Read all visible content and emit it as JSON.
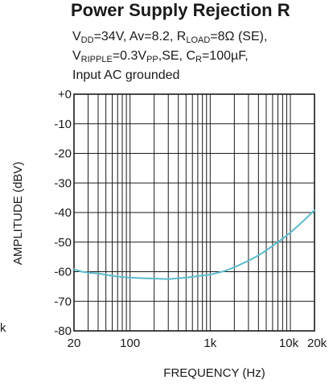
{
  "chart_data": {
    "type": "line",
    "title": "Power Supply Rejection R",
    "conditions": {
      "line1": {
        "a": "V",
        "a_sub": "DD",
        "b": "=34V, Av=8.2, R",
        "b_sub": "LOAD",
        "c": "=8Ω (SE),"
      },
      "line2": {
        "a": "V",
        "a_sub": "RIPPLE",
        "b": "=0.3V",
        "b_sub": "PP",
        "c": ",SE, C",
        "c_sub": "R",
        "d": "=100µF,"
      },
      "line3": "Input AC grounded"
    },
    "xlabel": "FREQUENCY (Hz)",
    "ylabel": "AMPLITUDE (dBV)",
    "xscale": "log",
    "xlim": [
      20,
      20000
    ],
    "ylim": [
      -80,
      0
    ],
    "grid": true,
    "x_ticks": [
      {
        "value": 20,
        "label": "20"
      },
      {
        "value": 100,
        "label": "100"
      },
      {
        "value": 1000,
        "label": "1k"
      },
      {
        "value": 10000,
        "label": "10k"
      },
      {
        "value": 20000,
        "label": "20k"
      }
    ],
    "y_ticks": [
      {
        "value": 0,
        "label": "+0"
      },
      {
        "value": -10,
        "label": "-10"
      },
      {
        "value": -20,
        "label": "-20"
      },
      {
        "value": -30,
        "label": "-30"
      },
      {
        "value": -40,
        "label": "-40"
      },
      {
        "value": -50,
        "label": "-50"
      },
      {
        "value": -60,
        "label": "-60"
      },
      {
        "value": -70,
        "label": "-70"
      },
      {
        "value": -80,
        "label": "-80"
      }
    ],
    "series": [
      {
        "color": "#5bbccc",
        "x": [
          20,
          25,
          30,
          40,
          50,
          60,
          80,
          100,
          150,
          200,
          300,
          400,
          500,
          700,
          1000,
          1500,
          2000,
          3000,
          4000,
          5000,
          7000,
          10000,
          15000,
          20000
        ],
        "y": [
          -59.2,
          -60.0,
          -60.3,
          -60.6,
          -61.0,
          -61.4,
          -61.8,
          -62.0,
          -62.2,
          -62.3,
          -62.5,
          -62.2,
          -62.0,
          -61.5,
          -61.0,
          -59.8,
          -58.5,
          -56.3,
          -54.5,
          -52.8,
          -50.0,
          -46.8,
          -42.5,
          -39.2
        ]
      }
    ]
  },
  "side_fragment": "k"
}
